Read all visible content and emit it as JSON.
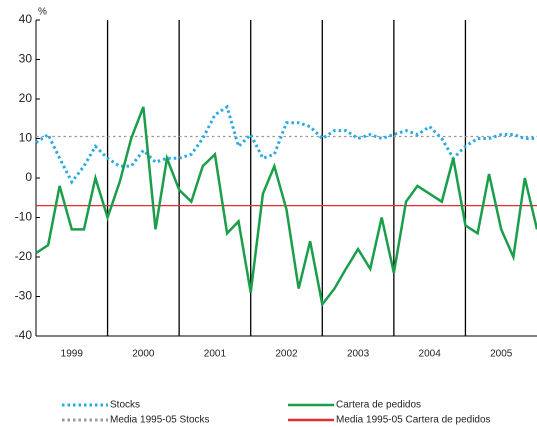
{
  "chart_data": {
    "type": "line",
    "y_unit": "%",
    "x": [
      1999,
      1999.17,
      1999.33,
      1999.5,
      1999.67,
      1999.83,
      2000,
      2000.17,
      2000.33,
      2000.5,
      2000.67,
      2000.83,
      2001,
      2001.17,
      2001.33,
      2001.5,
      2001.67,
      2001.83,
      2002,
      2002.17,
      2002.33,
      2002.5,
      2002.67,
      2002.83,
      2003,
      2003.17,
      2003.33,
      2003.5,
      2003.67,
      2003.83,
      2004,
      2004.17,
      2004.33,
      2004.5,
      2004.67,
      2004.83,
      2005,
      2005.17,
      2005.33,
      2005.5,
      2005.67,
      2005.83,
      2006
    ],
    "series": [
      {
        "name": "Stocks",
        "color": "#29abe2",
        "style": "dotted",
        "values": [
          9,
          11,
          5,
          -1,
          3,
          8,
          5,
          3,
          3,
          7,
          4,
          5,
          5,
          6,
          10,
          16,
          18,
          8,
          11,
          5,
          6,
          14,
          14,
          13,
          10,
          12,
          12,
          10,
          11,
          10,
          11,
          12,
          11,
          13,
          10,
          5,
          8,
          10,
          10,
          11,
          11,
          10,
          10
        ]
      },
      {
        "name": "Cartera de pedidos",
        "color": "#1a9e4a",
        "style": "solid",
        "values": [
          -19,
          -17,
          -2,
          -13,
          -13,
          0,
          -10,
          -1,
          10,
          18,
          -13,
          5,
          -3,
          -6,
          3,
          6,
          -14,
          -11,
          -29,
          -4,
          3,
          -8,
          -28,
          -16,
          -32,
          -28,
          -23,
          -18,
          -23,
          -10,
          -24,
          -6,
          -2,
          -4,
          -6,
          5,
          -12,
          -14,
          1,
          -13,
          -20,
          0,
          -13
        ]
      }
    ],
    "reference_lines": [
      {
        "name": "Media 1995-05 Stocks",
        "color": "#999999",
        "style": "dotted",
        "value": 10.5
      },
      {
        "name": "Media 1995-05 Cartera de pedidos",
        "color": "#e03030",
        "style": "solid",
        "value": -7
      }
    ],
    "year_labels": [
      "1999",
      "2000",
      "2001",
      "2002",
      "2003",
      "2004",
      "2005"
    ],
    "xlim": [
      1999,
      2006
    ],
    "xticks": [
      2000,
      2001,
      2002,
      2003,
      2004,
      2005
    ],
    "ylim": [
      -40,
      40
    ],
    "yticks": [
      40,
      30,
      20,
      10,
      0,
      -10,
      -20,
      -30,
      -40
    ]
  }
}
